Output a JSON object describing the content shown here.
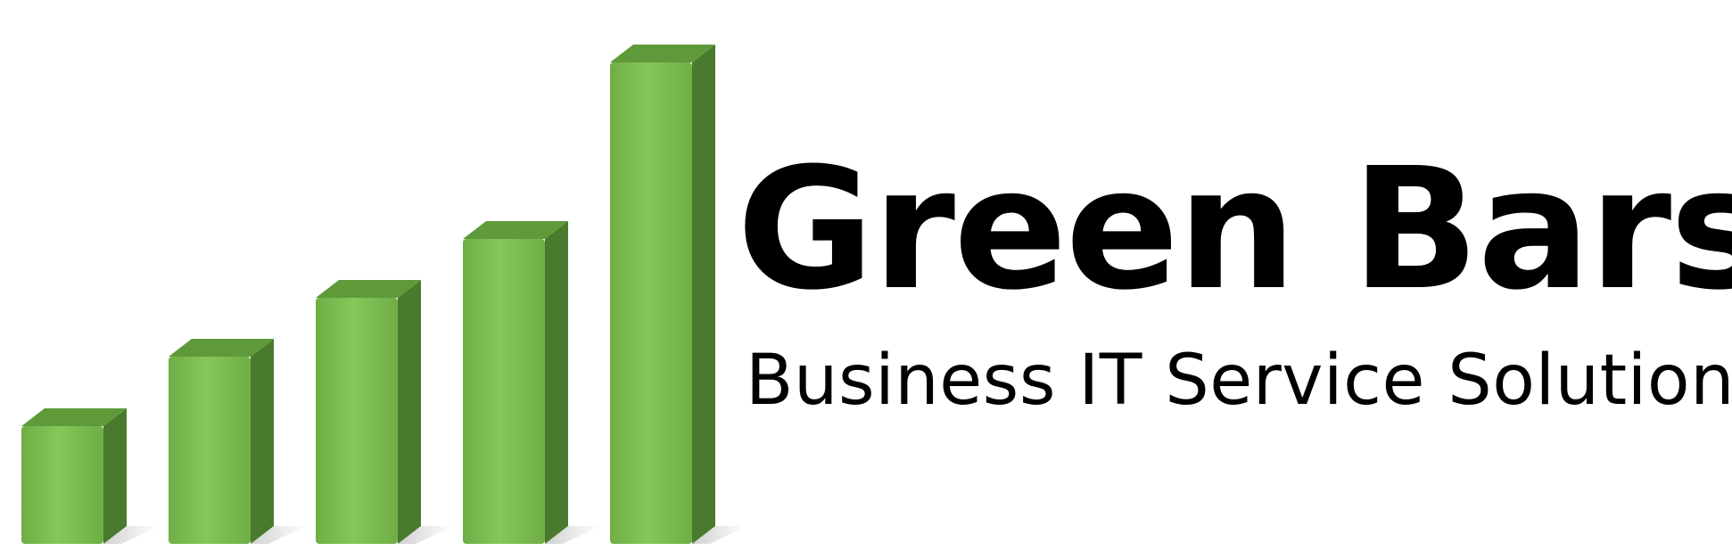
{
  "brand": {
    "name": "Green Bars",
    "tagline": "Business IT Service Solutions"
  },
  "logo": {
    "icon": "bar-chart-icon",
    "bar_count": 5,
    "relative_heights": [
      0.22,
      0.35,
      0.46,
      0.57,
      0.9
    ],
    "colors": {
      "front": "#6fae45",
      "front_highlight": "#86c65a",
      "side": "#4a7a2d",
      "top": "#5f9a3a",
      "shadow": "#bdbdbd"
    }
  }
}
